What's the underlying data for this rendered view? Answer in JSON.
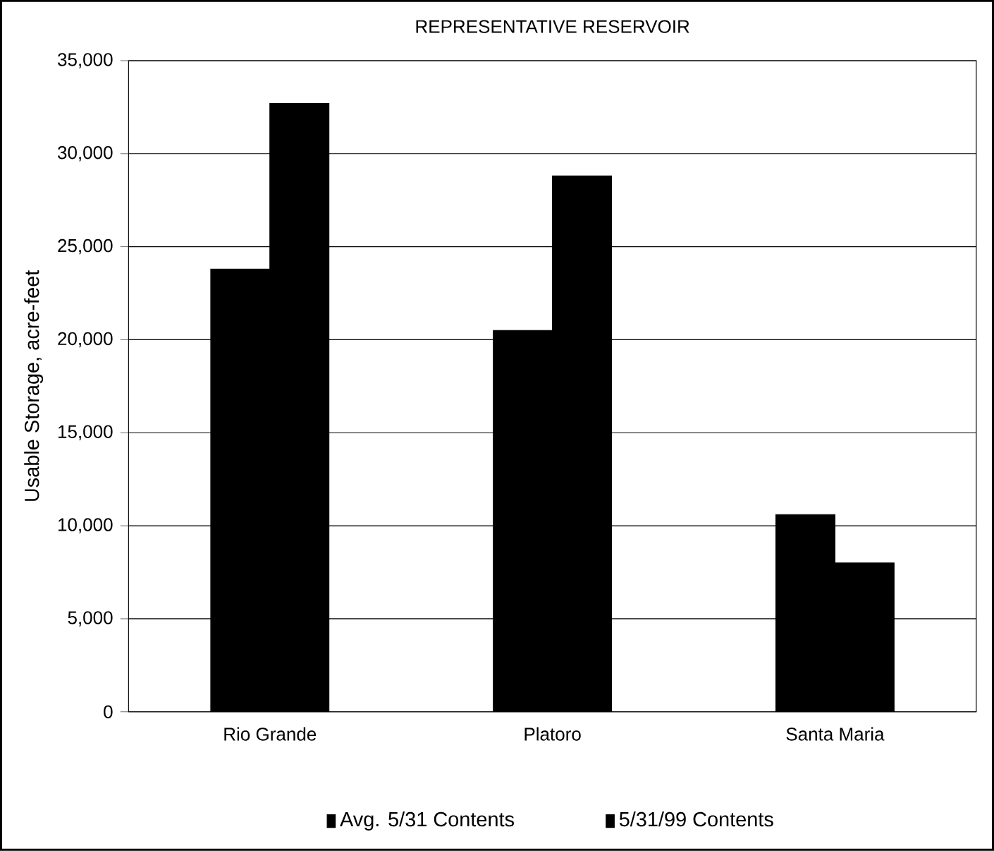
{
  "chart_data": {
    "type": "bar",
    "title": "REPRESENTATIVE RESERVOIR",
    "ylabel": "Usable Storage, acre-feet",
    "categories": [
      "Rio Grande",
      "Platoro",
      "Santa Maria"
    ],
    "series": [
      {
        "name": "Avg. 5/31 Contents",
        "color": "#000000",
        "values": [
          23800,
          20500,
          10600
        ]
      },
      {
        "name": "5/31/99 Contents",
        "color": "#000000",
        "values": [
          32700,
          28800,
          8000
        ]
      }
    ],
    "ylim": [
      0,
      35000
    ],
    "yticks": [
      {
        "value": 0,
        "label": "0"
      },
      {
        "value": 5000,
        "label": "5,000"
      },
      {
        "value": 10000,
        "label": "10,000"
      },
      {
        "value": 15000,
        "label": "15,000"
      },
      {
        "value": 20000,
        "label": "20,000"
      },
      {
        "value": 25000,
        "label": "25,000"
      },
      {
        "value": 30000,
        "label": "30,000"
      },
      {
        "value": 35000,
        "label": "35,000"
      }
    ],
    "grid": "y",
    "legend": "bottom"
  }
}
